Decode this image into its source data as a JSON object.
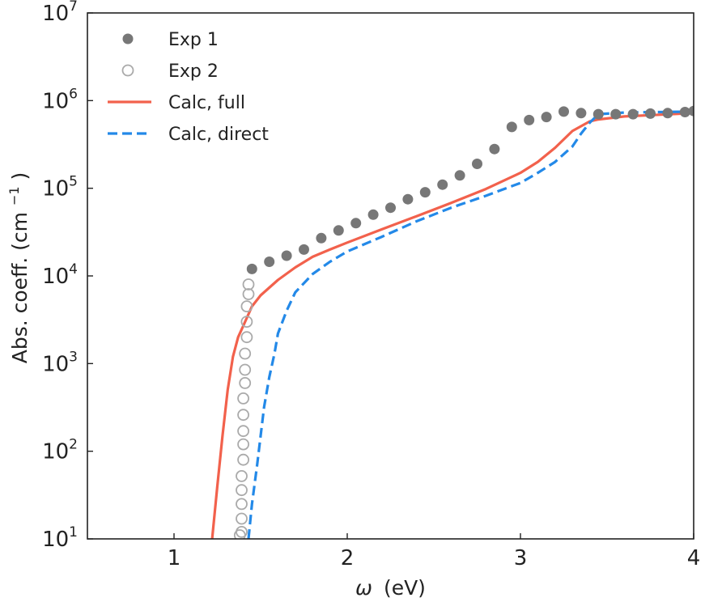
{
  "chart_data": {
    "type": "line",
    "title": "",
    "xlabel": {
      "symbol": "ω",
      "unit": "(eV)"
    },
    "ylabel": {
      "main": "Abs. coeff. (cm",
      "sup": "−1",
      "close": ")"
    },
    "xlim": [
      0.5,
      4.0
    ],
    "ylim": [
      10,
      10000000
    ],
    "y_scale": "log",
    "x_ticks": [
      {
        "value": 1,
        "label": "1"
      },
      {
        "value": 2,
        "label": "2"
      },
      {
        "value": 3,
        "label": "3"
      },
      {
        "value": 4,
        "label": "4"
      }
    ],
    "y_ticks": [
      {
        "value": 10,
        "base": "10",
        "exp": "1"
      },
      {
        "value": 100,
        "base": "10",
        "exp": "2"
      },
      {
        "value": 1000,
        "base": "10",
        "exp": "3"
      },
      {
        "value": 10000,
        "base": "10",
        "exp": "4"
      },
      {
        "value": 100000,
        "base": "10",
        "exp": "5"
      },
      {
        "value": 1000000,
        "base": "10",
        "exp": "6"
      },
      {
        "value": 10000000,
        "base": "10",
        "exp": "7"
      }
    ],
    "grid": false,
    "legend_position": "top-left",
    "series": [
      {
        "name": "Exp 1",
        "kind": "scatter-filled",
        "color": "#777777",
        "x": [
          1.45,
          1.55,
          1.65,
          1.75,
          1.85,
          1.95,
          2.05,
          2.15,
          2.25,
          2.35,
          2.45,
          2.55,
          2.65,
          2.75,
          2.85,
          2.95,
          3.05,
          3.15,
          3.25,
          3.35,
          3.45,
          3.55,
          3.65,
          3.75,
          3.85,
          3.95,
          4.0
        ],
        "y": [
          12000,
          14500,
          17000,
          20000,
          27000,
          33000,
          40000,
          50000,
          60000,
          75000,
          90000,
          110000,
          140000,
          190000,
          280000,
          500000,
          600000,
          650000,
          750000,
          720000,
          700000,
          700000,
          700000,
          710000,
          720000,
          740000,
          760000
        ]
      },
      {
        "name": "Exp 2",
        "kind": "scatter-open",
        "color": "#aaaaaa",
        "x": [
          1.43,
          1.43,
          1.42,
          1.42,
          1.42,
          1.41,
          1.41,
          1.41,
          1.4,
          1.4,
          1.4,
          1.4,
          1.4,
          1.39,
          1.39,
          1.39,
          1.39,
          1.39,
          1.38
        ],
        "y": [
          8000,
          6200,
          4500,
          3000,
          2000,
          1300,
          850,
          600,
          400,
          260,
          170,
          120,
          80,
          52,
          36,
          25,
          17,
          12,
          11
        ]
      },
      {
        "name": "Calc, full",
        "kind": "line",
        "color": "#f2614c",
        "dash": "solid",
        "x": [
          1.22,
          1.25,
          1.28,
          1.31,
          1.34,
          1.37,
          1.4,
          1.45,
          1.5,
          1.6,
          1.7,
          1.8,
          1.9,
          2.0,
          2.2,
          2.4,
          2.6,
          2.8,
          3.0,
          3.1,
          3.2,
          3.3,
          3.4,
          3.45,
          3.6,
          3.8,
          4.0
        ],
        "y": [
          10,
          40,
          150,
          500,
          1200,
          2000,
          2700,
          4500,
          6000,
          9000,
          12500,
          16500,
          20000,
          24000,
          34000,
          48000,
          68000,
          98000,
          150000,
          200000,
          290000,
          450000,
          580000,
          610000,
          660000,
          690000,
          720000
        ]
      },
      {
        "name": "Calc, direct",
        "kind": "line",
        "color": "#2389e8",
        "dash": "dashed",
        "x": [
          1.43,
          1.45,
          1.48,
          1.5,
          1.52,
          1.55,
          1.58,
          1.6,
          1.65,
          1.7,
          1.8,
          1.9,
          2.0,
          2.2,
          2.4,
          2.6,
          2.8,
          3.0,
          3.1,
          3.2,
          3.3,
          3.35,
          3.4,
          3.45,
          3.6,
          3.8,
          4.0
        ],
        "y": [
          10,
          25,
          70,
          150,
          320,
          700,
          1300,
          2200,
          4000,
          6500,
          10500,
          14500,
          19000,
          28000,
          42000,
          60000,
          82000,
          115000,
          150000,
          200000,
          300000,
          420000,
          560000,
          700000,
          730000,
          740000,
          750000
        ]
      }
    ]
  }
}
